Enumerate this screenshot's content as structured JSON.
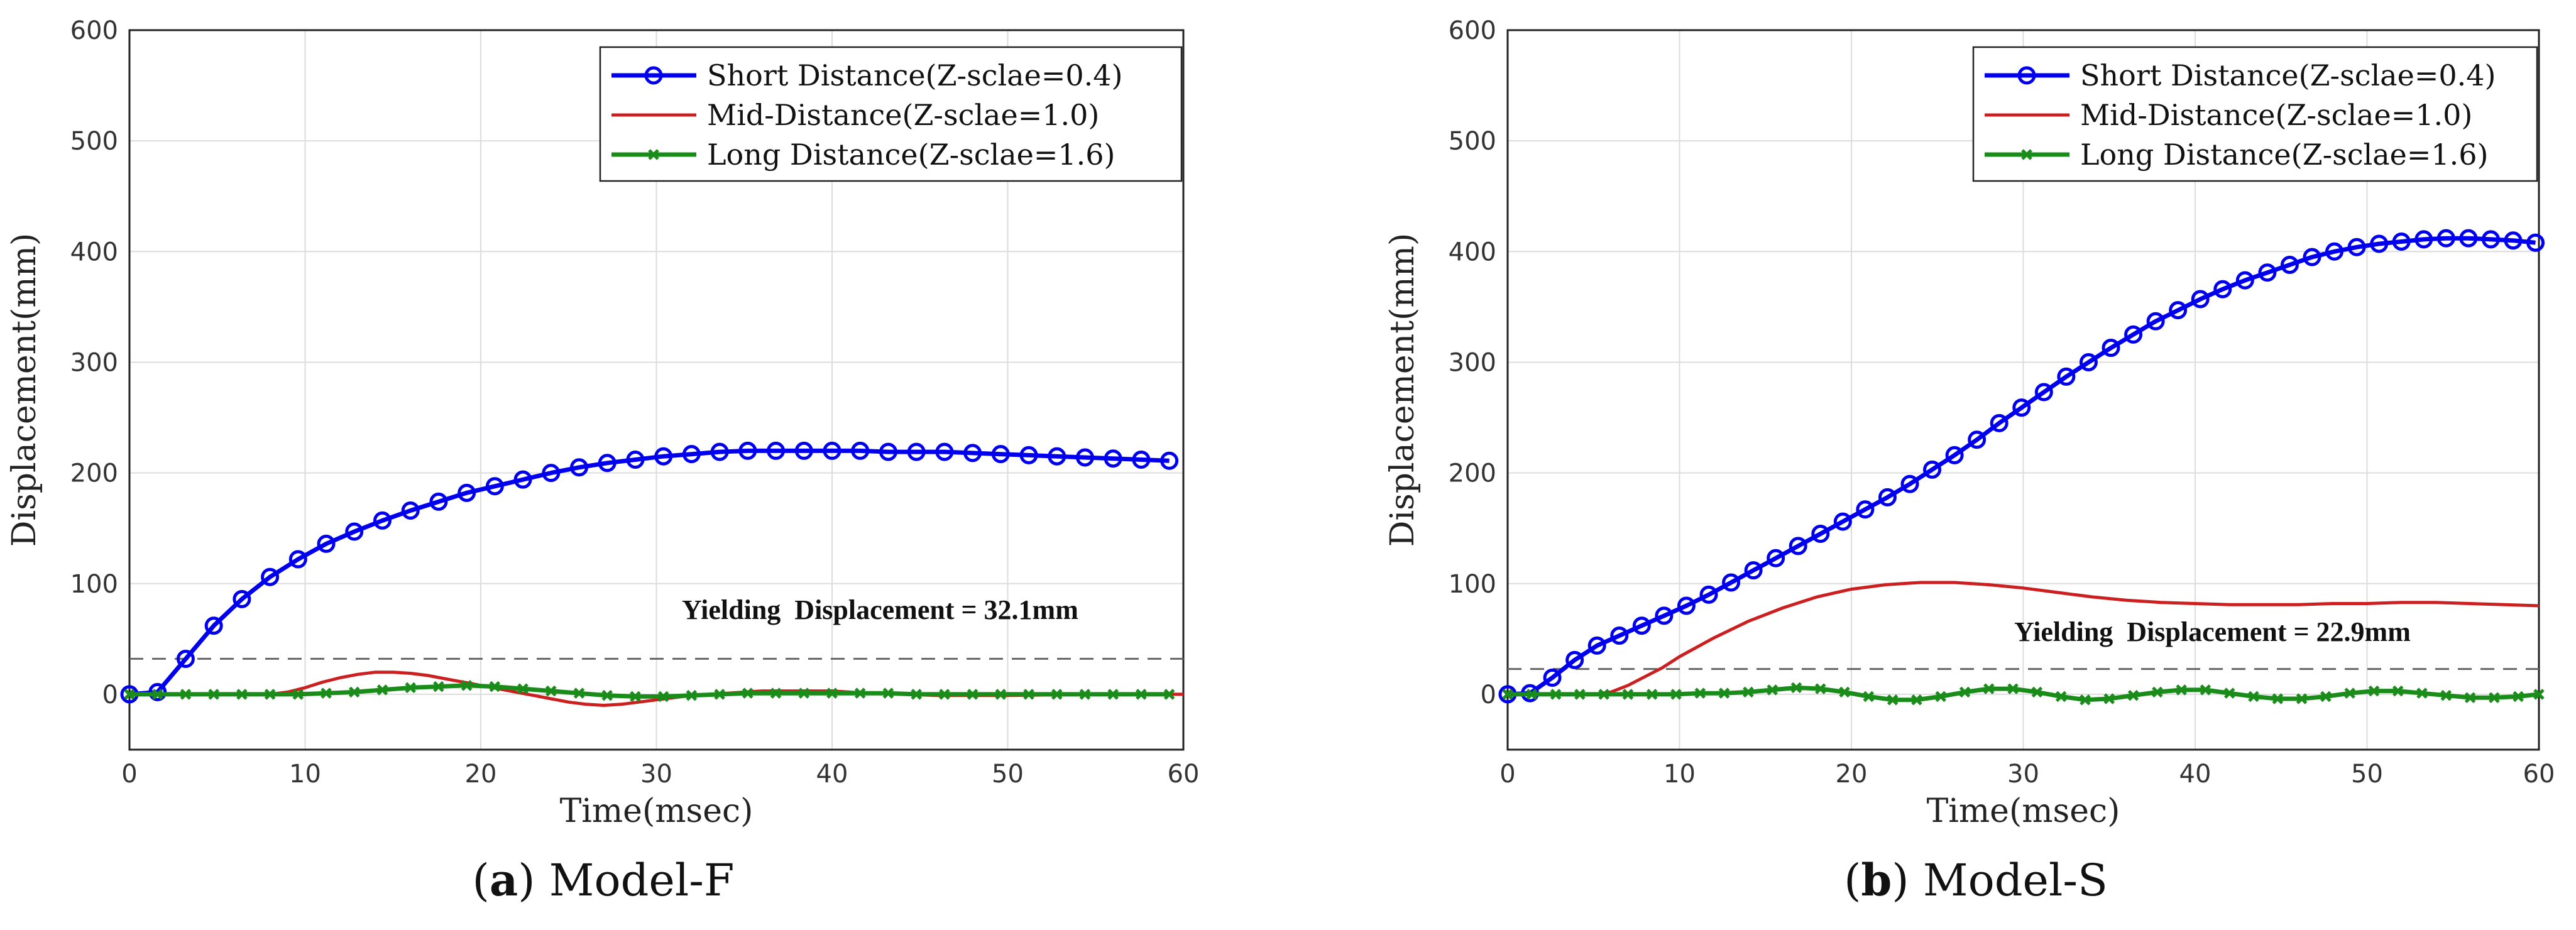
{
  "chart_data": [
    {
      "type": "line",
      "caption_letter": "a",
      "caption_text": "Model-F",
      "xlabel": "Time(msec)",
      "ylabel": "Displacement(mm)",
      "xlim": [
        0,
        60
      ],
      "ylim": [
        -50,
        600
      ],
      "xticks": [
        "0",
        "10",
        "20",
        "30",
        "40",
        "50",
        "60"
      ],
      "yticks": [
        "600",
        "500",
        "400",
        "300",
        "200",
        "100",
        "0"
      ],
      "grid": true,
      "legend_position": "top-right",
      "annotation": "Yielding  Displacement = 32.1mm",
      "yield_line": 32.1,
      "series": [
        {
          "name": "Short Distance(Z-sclae=0.4)",
          "color": "#0000ee",
          "marker": "circle",
          "x": [
            0,
            1.6,
            3.2,
            4.8,
            6.4,
            8,
            9.6,
            11.2,
            12.8,
            14.4,
            16,
            17.6,
            19.2,
            20.8,
            22.4,
            24,
            25.6,
            27.2,
            28.8,
            30.4,
            32,
            33.6,
            35.2,
            36.8,
            38.4,
            40,
            41.6,
            43.2,
            44.8,
            46.4,
            48,
            49.6,
            51.2,
            52.8,
            54.4,
            56,
            57.6,
            59.2
          ],
          "y": [
            0,
            2,
            32,
            62,
            86,
            106,
            122,
            136,
            147,
            157,
            166,
            174,
            182,
            188,
            194,
            200,
            205,
            209,
            212,
            215,
            217,
            219,
            220,
            220,
            220,
            220,
            220,
            219,
            219,
            219,
            218,
            217,
            216,
            215,
            214,
            213,
            212,
            211
          ]
        },
        {
          "name": "Mid-Distance(Z-sclae=1.0)",
          "color": "#cc1f1f",
          "marker": "none",
          "x": [
            0,
            5,
            8,
            9,
            10,
            11,
            12,
            13,
            14,
            15,
            16,
            17,
            18,
            19,
            20,
            21,
            22,
            23,
            24,
            25,
            26,
            27,
            28,
            29,
            30,
            31,
            32,
            33,
            34,
            35,
            36,
            37,
            38,
            39,
            40,
            41,
            42,
            44,
            46,
            50,
            55,
            60
          ],
          "y": [
            0,
            0,
            0,
            2,
            6,
            11,
            15,
            18,
            20,
            20,
            19,
            17,
            14,
            11,
            8,
            5,
            2,
            -1,
            -4,
            -7,
            -9,
            -10,
            -9,
            -7,
            -5,
            -3,
            -1,
            0,
            1,
            2,
            3,
            3,
            3,
            3,
            3,
            2,
            1,
            0,
            -1,
            -1,
            0,
            0
          ]
        },
        {
          "name": "Long Distance(Z-sclae=1.6)",
          "color": "#1a8c1a",
          "marker": "x",
          "x": [
            0,
            1.6,
            3.2,
            4.8,
            6.4,
            8,
            9.6,
            11.2,
            12.8,
            14.4,
            16,
            17.6,
            19.2,
            20.8,
            22.4,
            24,
            25.6,
            27.2,
            28.8,
            30.4,
            32,
            33.6,
            35.2,
            36.8,
            38.4,
            40,
            41.6,
            43.2,
            44.8,
            46.4,
            48,
            49.6,
            51.2,
            52.8,
            54.4,
            56,
            57.6,
            59.2
          ],
          "y": [
            0,
            0,
            0,
            0,
            0,
            0,
            0,
            1,
            2,
            4,
            6,
            7,
            8,
            7,
            5,
            3,
            1,
            -1,
            -2,
            -2,
            -1,
            0,
            1,
            1,
            1,
            1,
            1,
            1,
            0,
            0,
            0,
            0,
            0,
            0,
            0,
            0,
            0,
            0
          ]
        }
      ]
    },
    {
      "type": "line",
      "caption_letter": "b",
      "caption_text": "Model-S",
      "xlabel": "Time(msec)",
      "ylabel": "Displacement(mm)",
      "xlim": [
        0,
        60
      ],
      "ylim": [
        -50,
        600
      ],
      "xticks": [
        "0",
        "10",
        "20",
        "30",
        "40",
        "50",
        "60"
      ],
      "yticks": [
        "600",
        "500",
        "400",
        "300",
        "200",
        "100",
        "0"
      ],
      "grid": true,
      "legend_position": "top-right",
      "annotation": "Yielding  Displacement = 22.9mm",
      "yield_line": 22.9,
      "series": [
        {
          "name": "Short Distance(Z-sclae=0.4)",
          "color": "#0000ee",
          "marker": "circle",
          "x": [
            0,
            1.3,
            2.6,
            3.9,
            5.2,
            6.5,
            7.8,
            9.1,
            10.4,
            11.7,
            13,
            14.3,
            15.6,
            16.9,
            18.2,
            19.5,
            20.8,
            22.1,
            23.4,
            24.7,
            26,
            27.3,
            28.6,
            29.9,
            31.2,
            32.5,
            33.8,
            35.1,
            36.4,
            37.7,
            39,
            40.3,
            41.6,
            42.9,
            44.2,
            45.5,
            46.8,
            48.1,
            49.4,
            50.7,
            52,
            53.3,
            54.6,
            55.9,
            57.2,
            58.5,
            59.8
          ],
          "y": [
            0,
            1,
            15,
            31,
            44,
            53,
            62,
            71,
            80,
            90,
            101,
            112,
            123,
            134,
            145,
            156,
            167,
            178,
            190,
            203,
            216,
            230,
            245,
            259,
            273,
            287,
            300,
            313,
            325,
            337,
            347,
            357,
            366,
            374,
            381,
            388,
            395,
            400,
            404,
            407,
            409,
            411,
            412,
            412,
            411,
            410,
            408
          ]
        },
        {
          "name": "Mid-Distance(Z-sclae=1.0)",
          "color": "#cc1f1f",
          "marker": "none",
          "x": [
            0,
            5,
            6,
            7,
            8,
            9,
            10,
            12,
            14,
            16,
            18,
            20,
            22,
            24,
            25,
            26,
            28,
            30,
            32,
            34,
            36,
            38,
            40,
            42,
            44,
            46,
            48,
            50,
            52,
            54,
            56,
            58,
            60
          ],
          "y": [
            0,
            0,
            2,
            8,
            16,
            24,
            34,
            51,
            66,
            78,
            88,
            95,
            99,
            101,
            101,
            101,
            99,
            96,
            92,
            88,
            85,
            83,
            82,
            81,
            81,
            81,
            82,
            82,
            83,
            83,
            82,
            81,
            80
          ]
        },
        {
          "name": "Long Distance(Z-sclae=1.6)",
          "color": "#1a8c1a",
          "marker": "x",
          "x": [
            0,
            1.4,
            2.8,
            4.2,
            5.6,
            7,
            8.4,
            9.8,
            11.2,
            12.6,
            14,
            15.4,
            16.8,
            18.2,
            19.6,
            21,
            22.4,
            23.8,
            25.2,
            26.6,
            28,
            29.4,
            30.8,
            32.2,
            33.6,
            35,
            36.4,
            37.8,
            39.2,
            40.6,
            42,
            43.4,
            44.8,
            46.2,
            47.6,
            49,
            50.4,
            51.8,
            53.2,
            54.6,
            56,
            57.4,
            58.8,
            60
          ],
          "y": [
            0,
            0,
            0,
            0,
            0,
            0,
            0,
            0,
            1,
            1,
            2,
            4,
            6,
            5,
            2,
            -2,
            -5,
            -5,
            -2,
            2,
            5,
            5,
            2,
            -2,
            -5,
            -4,
            -1,
            2,
            4,
            4,
            1,
            -2,
            -4,
            -4,
            -2,
            1,
            3,
            3,
            1,
            -1,
            -3,
            -3,
            -2,
            0
          ]
        }
      ]
    }
  ]
}
